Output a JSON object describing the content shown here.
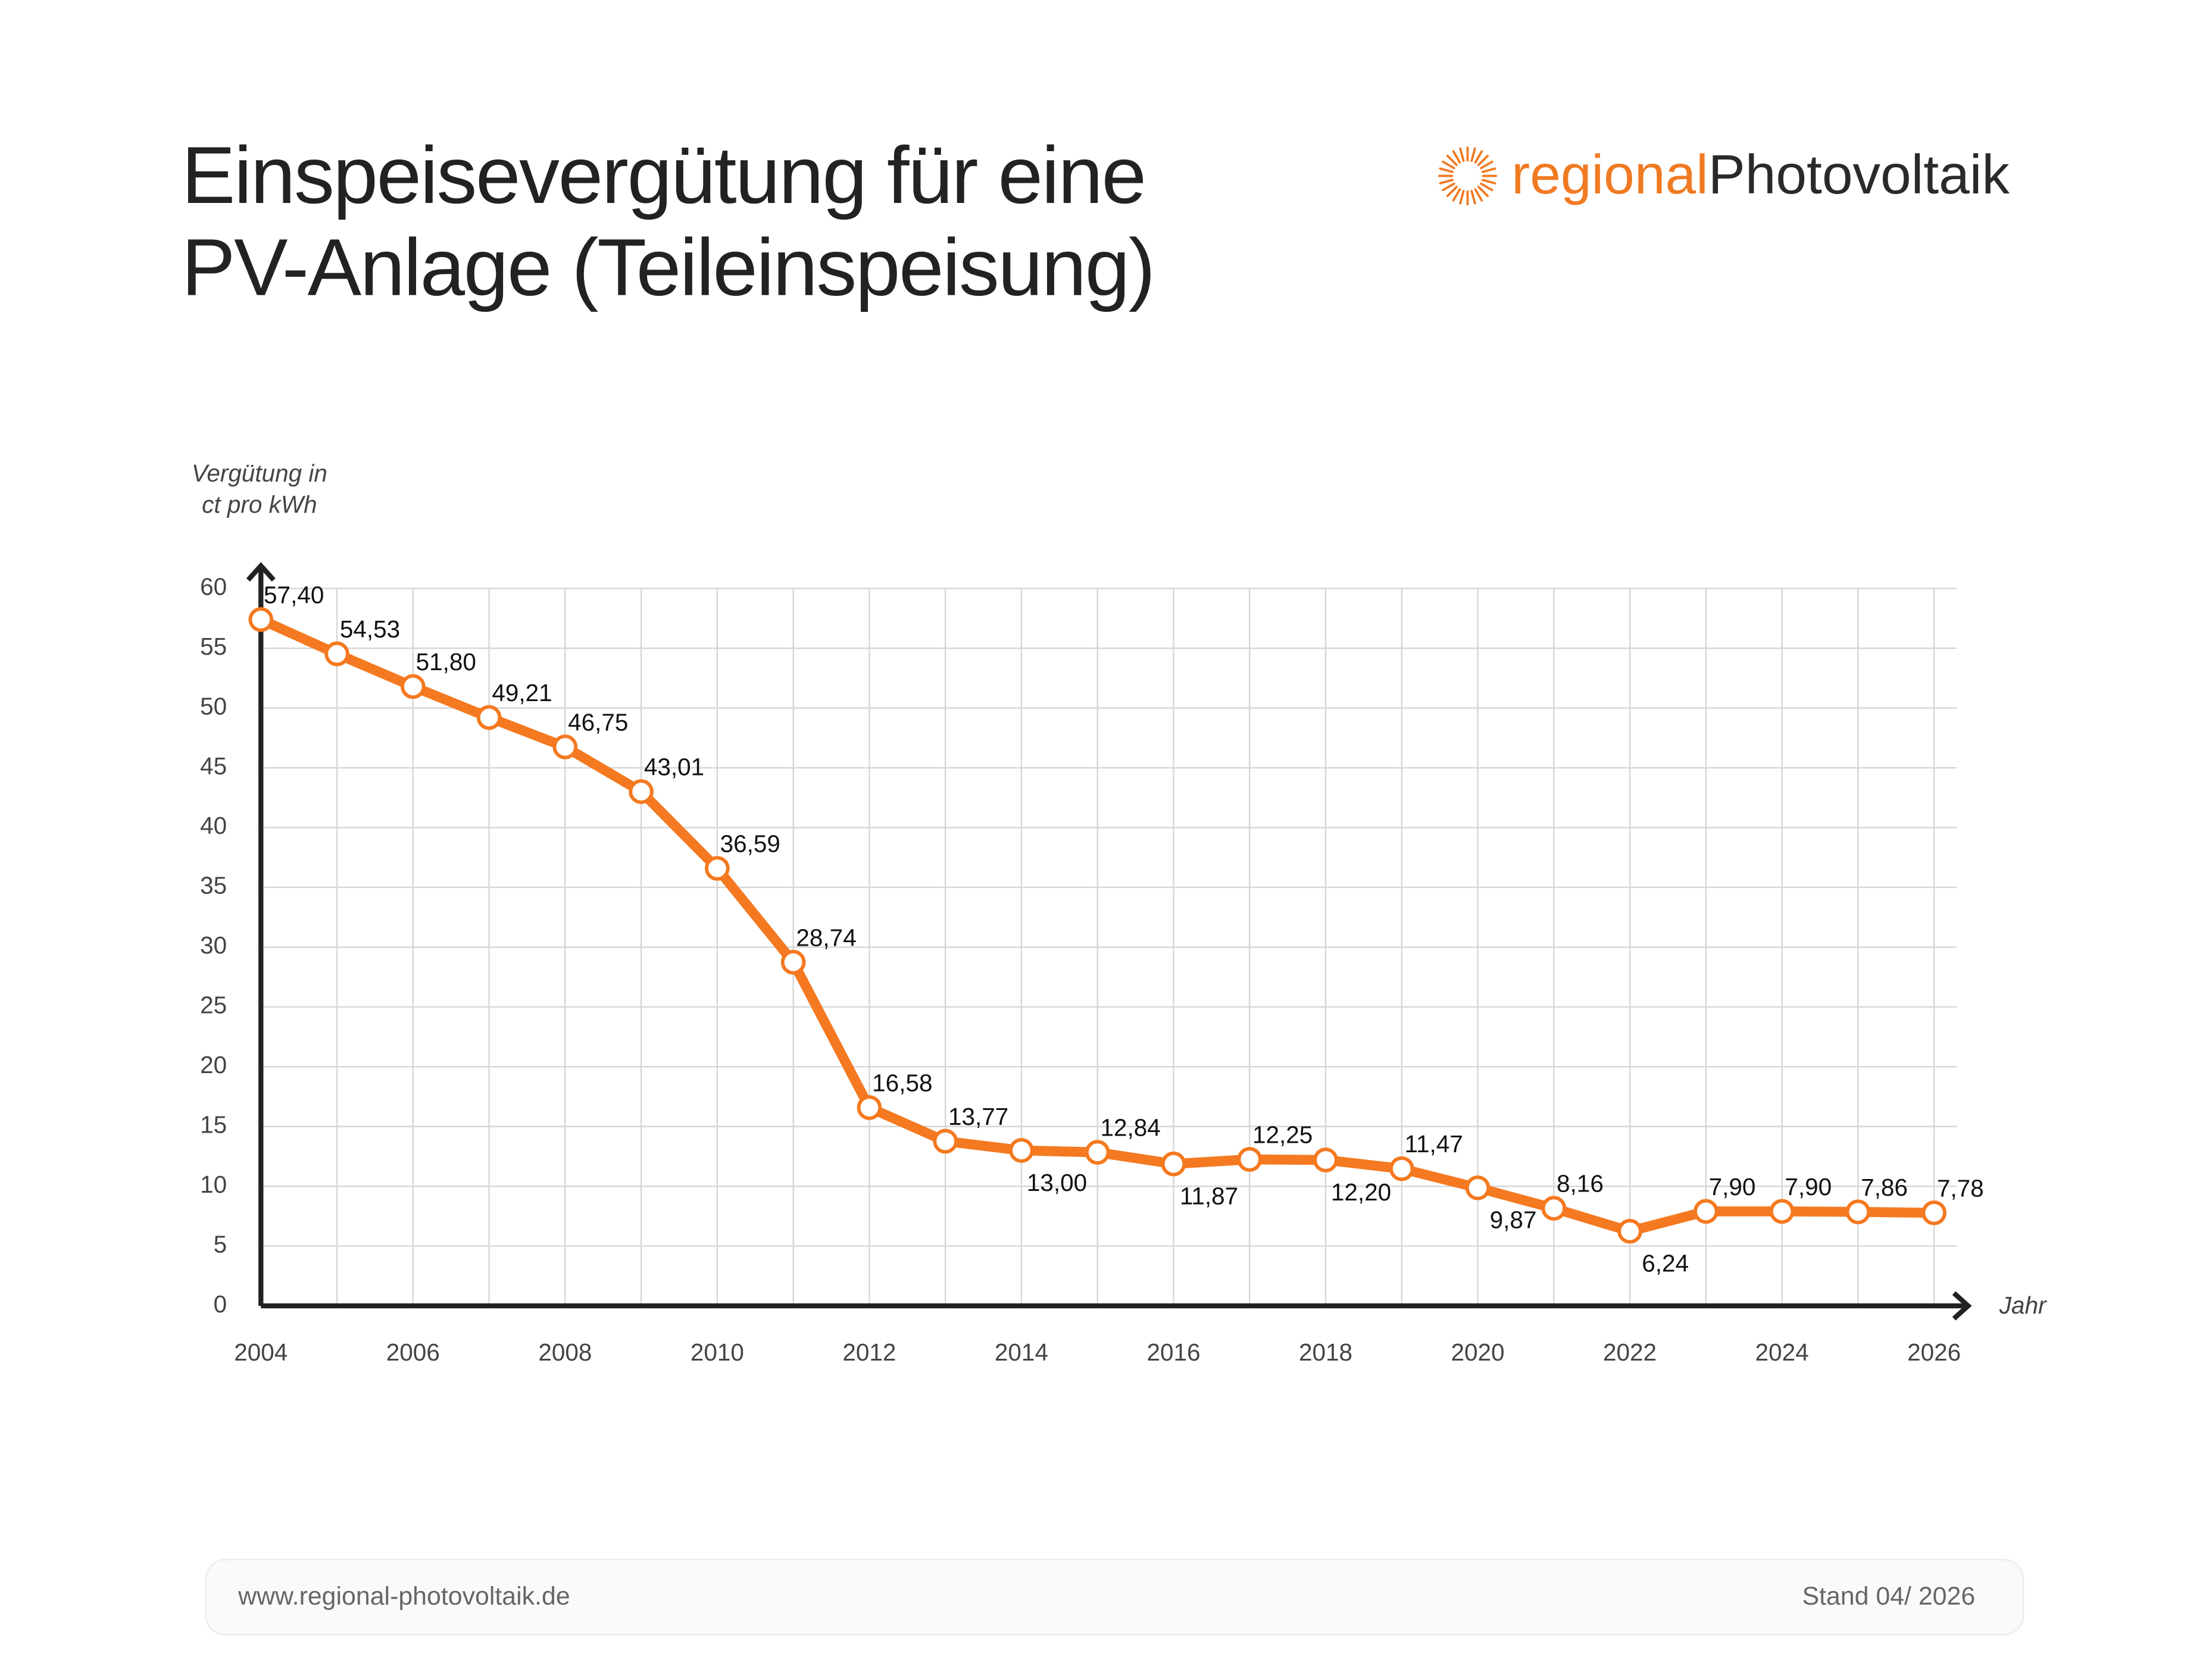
{
  "title": [
    "Einspeisevergütung für eine",
    "PV-Anlage (Teileinspeisung)"
  ],
  "logo": {
    "part1": "regional",
    "part2": "Photovoltaik"
  },
  "footer": {
    "url": "www.regional-photovoltaik.de",
    "stand": "Stand 04/ 2026"
  },
  "chart_data": {
    "type": "line",
    "y_label": [
      "Vergütung in",
      "ct pro kWh"
    ],
    "x_label": "Jahr",
    "x": [
      2004,
      2005,
      2006,
      2007,
      2008,
      2009,
      2010,
      2011,
      2012,
      2013,
      2014,
      2015,
      2016,
      2017,
      2018,
      2019,
      2020,
      2021,
      2022,
      2023,
      2024,
      2025,
      2026
    ],
    "series": [
      {
        "color": "#f47920",
        "values": [
          57.4,
          54.53,
          51.8,
          49.21,
          46.75,
          43.01,
          36.59,
          28.74,
          16.58,
          13.77,
          13.0,
          12.84,
          11.87,
          12.25,
          12.2,
          11.47,
          9.87,
          8.16,
          6.24,
          7.9,
          7.9,
          7.86,
          7.78
        ],
        "value_labels": [
          "57,40",
          "54,53",
          "51,80",
          "49,21",
          "46,75",
          "43,01",
          "36,59",
          "28,74",
          "16,58",
          "13,77",
          "13,00",
          "12,84",
          "11,87",
          "12,25",
          "12,20",
          "11,47",
          "9,87",
          "8,16",
          "6,24",
          "7,90",
          "7,90",
          "7,86",
          "7,78"
        ]
      }
    ],
    "xlim": [
      2004,
      2026
    ],
    "xticks": [
      2004,
      2006,
      2008,
      2010,
      2012,
      2014,
      2016,
      2018,
      2020,
      2022,
      2024,
      2026
    ],
    "ylim": [
      0,
      60
    ],
    "yticks": [
      0,
      5,
      10,
      15,
      20,
      25,
      30,
      35,
      40,
      45,
      50,
      55,
      60
    ],
    "grid": true
  }
}
